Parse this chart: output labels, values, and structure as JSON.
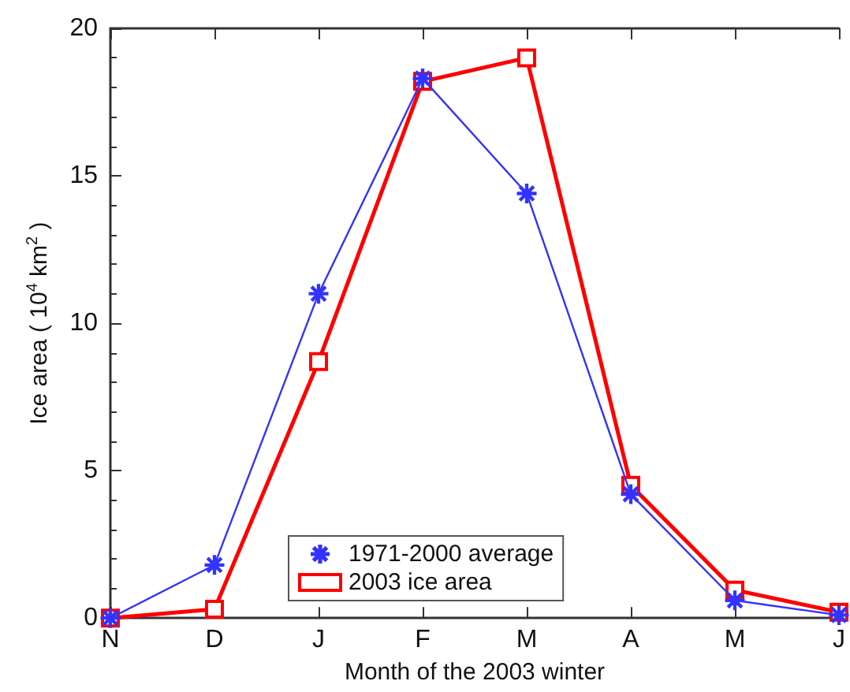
{
  "chart_data": {
    "type": "line",
    "xlabel": "Month of the 2003 winter",
    "ylabel": "Ice area ( 10$^{4}$ km$^{2}$ )",
    "categories": [
      "N",
      "D",
      "J",
      "F",
      "M",
      "A",
      "M",
      "J"
    ],
    "series": [
      {
        "name": "1971-2000 average",
        "color": "#3333ff",
        "marker": "star",
        "values": [
          0,
          1.8,
          11,
          18.3,
          14.4,
          4.2,
          0.6,
          0.1
        ]
      },
      {
        "name": "2003 ice area",
        "color": "#ff0000",
        "marker": "square",
        "values": [
          0,
          0.3,
          8.7,
          18.2,
          19,
          4.5,
          0.95,
          0.2
        ]
      }
    ],
    "ylim": [
      0,
      20
    ],
    "yticks": [
      0,
      5,
      10,
      15,
      20
    ],
    "grid": false,
    "legend": "bottom"
  }
}
